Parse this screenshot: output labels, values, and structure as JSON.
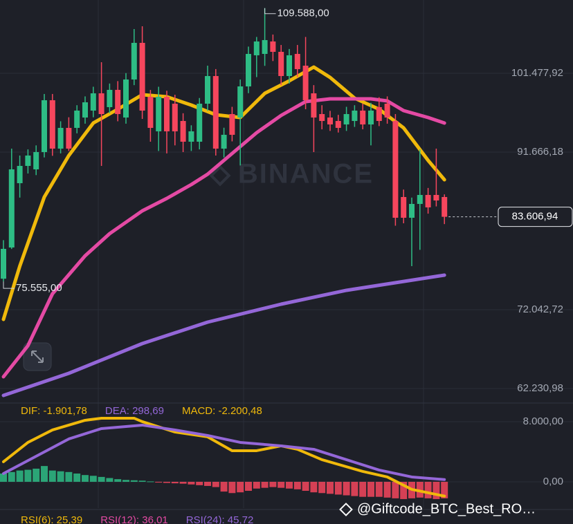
{
  "watermark": "BINANCE",
  "source": "@Giftcode_BTC_Best_RO…",
  "rsi_labels": [
    {
      "text": "RSI(6): 25,39",
      "color": "#f0b90b"
    },
    {
      "text": "RSI(12): 36,01",
      "color": "#e44aa4"
    },
    {
      "text": "RSI(24): 45,72",
      "color": "#9467d8"
    }
  ],
  "chart_data": [
    {
      "type": "candlestick",
      "ylim": [
        60680,
        110600
      ],
      "yticks": [
        {
          "value": 62230.98,
          "label": "62.230,98"
        },
        {
          "value": 72042.72,
          "label": "72.042,72"
        },
        {
          "value": 91666.18,
          "label": "91.666,18"
        },
        {
          "value": 101477.92,
          "label": "101.477,92"
        }
      ],
      "up_color": "#2ebd85",
      "down_color": "#f6465d",
      "open": [
        75900,
        79788,
        87792,
        89944,
        89514,
        91666,
        98121,
        92096,
        94678,
        94678,
        95969,
        96830,
        98982,
        97260,
        99412,
        95969,
        100703,
        105265,
        98551,
        94248,
        98551,
        97690,
        95539,
        92957,
        92957,
        97690,
        101133,
        92096,
        96399,
        95969,
        99842,
        103715,
        103888,
        105437,
        104146,
        101133,
        103888,
        102424,
        98982,
        96399,
        95969,
        95539,
        95108,
        95539,
        96830,
        95108,
        97260,
        97690,
        95539,
        86071,
        83489,
        85210,
        86329,
        86329,
        86071
      ],
      "high": [
        80700,
        92096,
        91235,
        92000,
        92500,
        98900,
        98900,
        95500,
        96000,
        97500,
        98600,
        99800,
        102855,
        100200,
        100500,
        101500,
        106986,
        107330,
        99400,
        99800,
        99300,
        98800,
        96500,
        95000,
        98400,
        102424,
        102000,
        94700,
        97300,
        100700,
        104800,
        106000,
        109588,
        106300,
        105000,
        104500,
        105000,
        106000,
        100000,
        97500,
        96800,
        96300,
        97300,
        97500,
        97700,
        97800,
        98500,
        98600,
        96400,
        87000,
        86000,
        92000,
        87200,
        92096,
        86400
      ],
      "low": [
        75555,
        79600,
        86000,
        89000,
        88800,
        91000,
        91200,
        91500,
        91800,
        94000,
        95200,
        96000,
        89944,
        96500,
        95500,
        95200,
        100000,
        95800,
        92957,
        91800,
        91500,
        92500,
        91666,
        91800,
        92000,
        96800,
        91235,
        91000,
        93000,
        90000,
        99000,
        101000,
        102400,
        103000,
        100000,
        100200,
        101000,
        97000,
        91666,
        94500,
        94300,
        94100,
        94300,
        94800,
        94500,
        92500,
        94900,
        95200,
        82500,
        82800,
        77464,
        79500,
        84000,
        84900,
        82700
      ],
      "close": [
        79616,
        89514,
        89944,
        91235,
        91666,
        98121,
        92096,
        94678,
        92096,
        96830,
        97863,
        98982,
        96399,
        99412,
        96399,
        100703,
        105265,
        96830,
        94678,
        98551,
        94248,
        94248,
        92957,
        94248,
        97690,
        101133,
        92096,
        93817,
        93817,
        99842,
        103888,
        105437,
        105609,
        104146,
        101133,
        103715,
        101994,
        98121,
        95969,
        95539,
        95108,
        94678,
        96399,
        96830,
        95108,
        96830,
        95539,
        95969,
        83489,
        83489,
        85210,
        86329,
        84780,
        85641,
        83606.94
      ],
      "lines": [
        {
          "color": "#f0b90b",
          "x": [
            0,
            2,
            5,
            8,
            11,
            14,
            17,
            20,
            23,
            26,
            29,
            32,
            35,
            38,
            40,
            43,
            46,
            49,
            52,
            54
          ],
          "values": [
            70837,
            77464,
            86071,
            91235,
            95281,
            97002,
            98809,
            98551,
            97518,
            96313,
            95969,
            98982,
            100531,
            102252,
            100961,
            98379,
            97002,
            94678,
            90633,
            88223
          ]
        },
        {
          "color": "#e44aa4",
          "x": [
            0,
            3,
            6,
            10,
            13,
            17,
            20,
            23,
            25,
            28,
            31,
            34,
            37,
            40,
            45,
            47,
            49,
            52,
            54
          ],
          "values": [
            63693,
            67566,
            74021,
            78755,
            81509,
            84350,
            85899,
            87620,
            88911,
            91493,
            94076,
            96227,
            97949,
            98293,
            98293,
            98035,
            96830,
            95969,
            95281
          ]
        },
        {
          "color": "#9467d8",
          "x": [
            0,
            8,
            17,
            25,
            34,
            42,
            54
          ],
          "values": [
            61369,
            64123,
            67824,
            70492,
            72730,
            74452,
            76345
          ]
        }
      ],
      "annotations": [
        {
          "value": 109588,
          "label": "109.588,00"
        },
        {
          "value": 75555,
          "label": "75.555,00"
        }
      ],
      "last_price": {
        "value": 83606.94,
        "label": "83.606,94"
      }
    },
    {
      "type": "macd",
      "ylim": [
        -3500,
        10300
      ],
      "yticks": [
        {
          "value": 0,
          "label": "0,00"
        },
        {
          "value": 8000,
          "label": "8.000,00"
        }
      ],
      "labels": [
        {
          "text": "DIF: -1.901,78",
          "color": "#f0b90b"
        },
        {
          "text": "DEA: 298,69",
          "color": "#9467d8"
        },
        {
          "text": "MACD: -2.200,48",
          "color": "#f0b90b"
        }
      ],
      "up_color": "#2ebd85",
      "down_color": "#f6465d",
      "histogram": [
        1100,
        1300,
        1500,
        1600,
        1750,
        2100,
        1500,
        1400,
        1300,
        1100,
        900,
        800,
        650,
        500,
        350,
        250,
        200,
        150,
        50,
        -100,
        -150,
        -200,
        -250,
        -350,
        -450,
        -550,
        -700,
        -1300,
        -1500,
        -1400,
        -1200,
        -900,
        -800,
        -700,
        -800,
        -900,
        -1000,
        -1200,
        -1400,
        -1500,
        -1600,
        -1700,
        -1800,
        -1900,
        -2000,
        -2000,
        -2000,
        -2100,
        -2200,
        -2300,
        -2200,
        -2100,
        -2200,
        -2300,
        -2200.48
      ],
      "lines": [
        {
          "color": "#f0b90b",
          "x": [
            0,
            3,
            6,
            10,
            12,
            16,
            17,
            21,
            25,
            28,
            31,
            34,
            36,
            39,
            44,
            47,
            50,
            54
          ],
          "values": [
            2668,
            5244,
            6900,
            8188,
            8464,
            8464,
            8004,
            6624,
            5980,
            4140,
            4140,
            4784,
            4324,
            2944,
            1380,
            644,
            -1012,
            -1901.78
          ]
        },
        {
          "color": "#9467d8",
          "x": [
            0,
            4,
            8,
            12,
            17,
            21,
            25,
            29,
            34,
            38,
            42,
            46,
            50,
            54
          ],
          "values": [
            1104,
            3404,
            5704,
            7084,
            7544,
            6900,
            6164,
            5244,
            4784,
            4324,
            2944,
            1564,
            644,
            298.69
          ]
        }
      ]
    }
  ]
}
